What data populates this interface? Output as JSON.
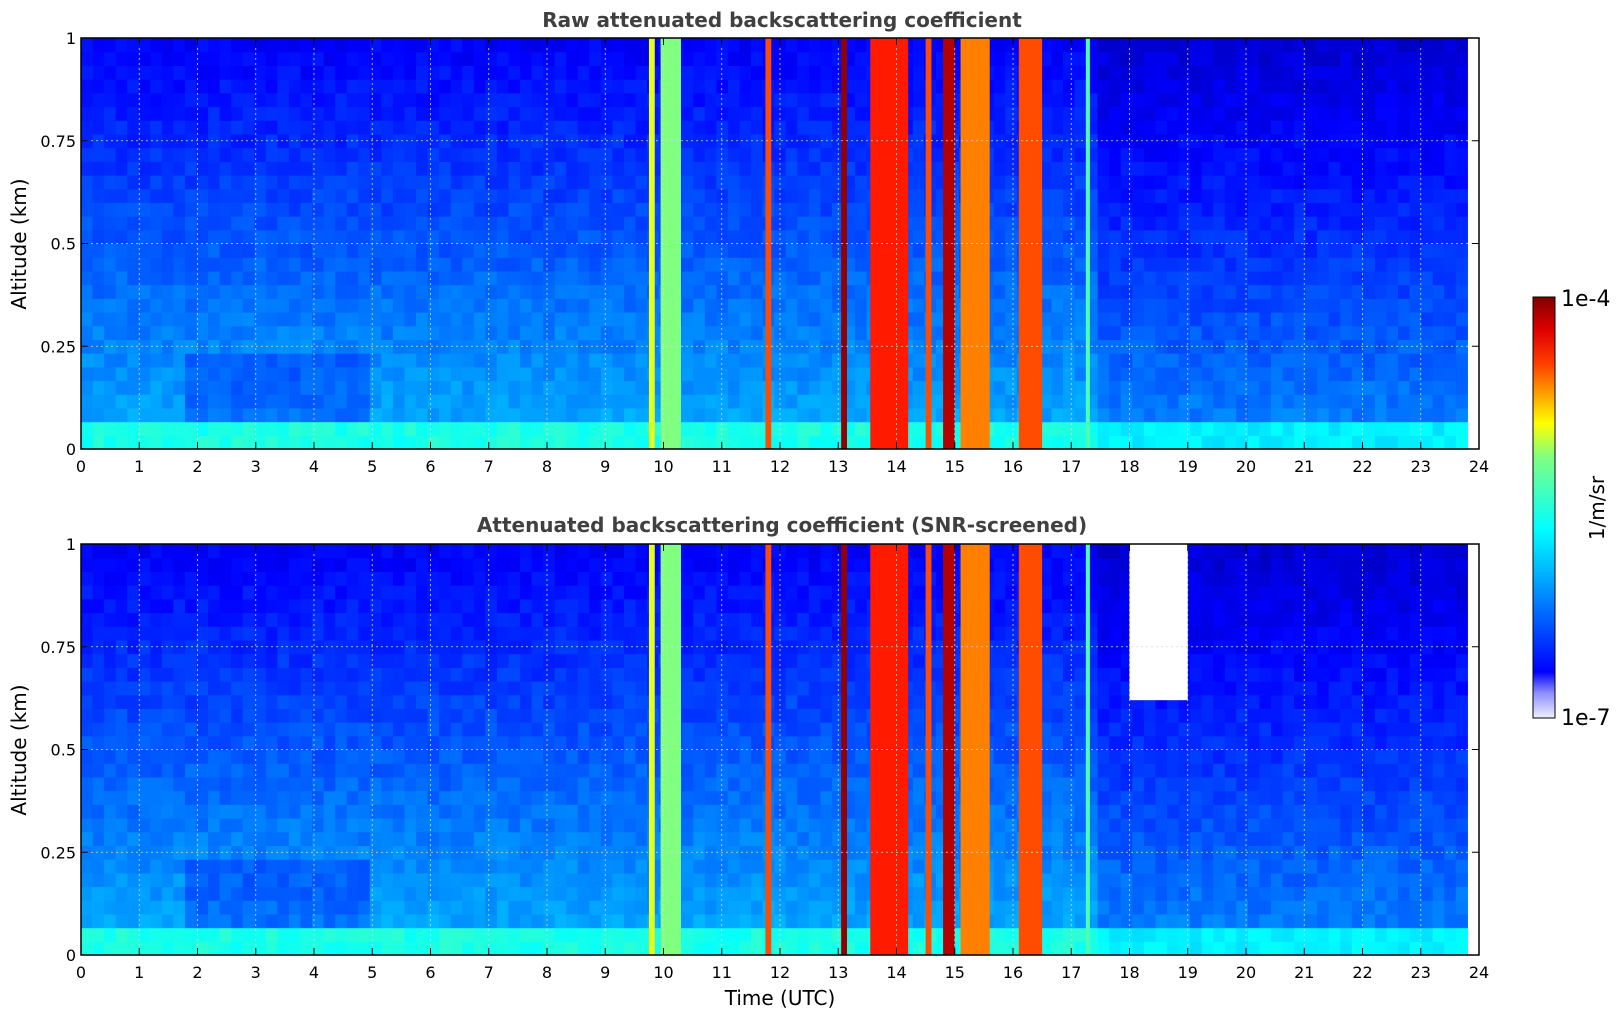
{
  "chart_data": [
    {
      "type": "heatmap",
      "title": "Raw attenuated backscattering coefficient",
      "xlabel": "",
      "ylabel": "Altitude (km)",
      "xlim": [
        0,
        24
      ],
      "ylim": [
        0,
        1
      ],
      "xticks": [
        "0",
        "1",
        "2",
        "3",
        "4",
        "5",
        "6",
        "7",
        "8",
        "9",
        "10",
        "11",
        "12",
        "13",
        "14",
        "15",
        "16",
        "17",
        "18",
        "19",
        "20",
        "21",
        "22",
        "23",
        "24"
      ],
      "yticks": [
        "0",
        "0.25",
        "0.5",
        "0.75",
        "1"
      ],
      "grid": true,
      "data_end_hour": 23.8,
      "screened": false,
      "cloud_bands": [
        {
          "x0": 9.75,
          "x1": 9.85,
          "level": 0.6
        },
        {
          "x0": 9.95,
          "x1": 10.3,
          "level": 0.5
        },
        {
          "x0": 11.75,
          "x1": 11.85,
          "level": 0.8
        },
        {
          "x0": 13.05,
          "x1": 13.15,
          "level": 0.98
        },
        {
          "x0": 13.55,
          "x1": 14.2,
          "level": 0.85
        },
        {
          "x0": 14.5,
          "x1": 14.6,
          "level": 0.8
        },
        {
          "x0": 14.8,
          "x1": 15.0,
          "level": 0.95
        },
        {
          "x0": 15.1,
          "x1": 15.6,
          "level": 0.75
        },
        {
          "x0": 16.1,
          "x1": 16.5,
          "level": 0.8
        },
        {
          "x0": 17.25,
          "x1": 17.32,
          "level": 0.45
        }
      ]
    },
    {
      "type": "heatmap",
      "title": "Attenuated backscattering coefficient (SNR-screened)",
      "xlabel": "Time (UTC)",
      "ylabel": "Altitude (km)",
      "xlim": [
        0,
        24
      ],
      "ylim": [
        0,
        1
      ],
      "xticks": [
        "0",
        "1",
        "2",
        "3",
        "4",
        "5",
        "6",
        "7",
        "8",
        "9",
        "10",
        "11",
        "12",
        "13",
        "14",
        "15",
        "16",
        "17",
        "18",
        "19",
        "20",
        "21",
        "22",
        "23",
        "24"
      ],
      "yticks": [
        "0",
        "0.25",
        "0.5",
        "0.75",
        "1"
      ],
      "grid": true,
      "data_end_hour": 23.8,
      "screened": true,
      "cloud_bands": [
        {
          "x0": 9.75,
          "x1": 9.85,
          "level": 0.6
        },
        {
          "x0": 9.95,
          "x1": 10.3,
          "level": 0.5
        },
        {
          "x0": 11.75,
          "x1": 11.85,
          "level": 0.8
        },
        {
          "x0": 13.05,
          "x1": 13.15,
          "level": 0.98
        },
        {
          "x0": 13.55,
          "x1": 14.2,
          "level": 0.85
        },
        {
          "x0": 14.5,
          "x1": 14.6,
          "level": 0.8
        },
        {
          "x0": 14.8,
          "x1": 15.0,
          "level": 0.95
        },
        {
          "x0": 15.1,
          "x1": 15.6,
          "level": 0.75
        },
        {
          "x0": 16.1,
          "x1": 16.5,
          "level": 0.8
        },
        {
          "x0": 17.25,
          "x1": 17.32,
          "level": 0.45
        }
      ]
    }
  ],
  "colorbar": {
    "label": "1/m/sr",
    "max_label": "1e-4",
    "min_label": "1e-7",
    "colormap": "jet",
    "range": [
      1e-07,
      0.0001
    ]
  }
}
